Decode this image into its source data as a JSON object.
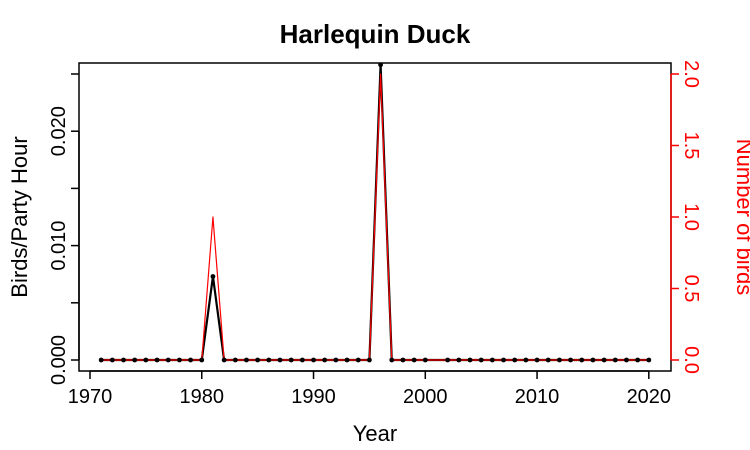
{
  "chart_data": {
    "type": "line",
    "title": "Harlequin Duck",
    "xlabel": "Year",
    "ylabel": "Birds/Party Hour",
    "ylabel_right": "Number of birds",
    "xlim": [
      1970,
      2021
    ],
    "ylim": [
      0,
      0.025
    ],
    "ylim_right": [
      0,
      2.0
    ],
    "x_ticks": [
      "1970",
      "1980",
      "1990",
      "2000",
      "2010",
      "2020"
    ],
    "y_ticks": [
      "0.000",
      "0.010",
      "0.020"
    ],
    "y_ticks_right": [
      "0.0",
      "0.5",
      "1.0",
      "1.5",
      "2.0"
    ],
    "grid": false,
    "colors": {
      "birds_per_party_hour": "#000000",
      "number_of_birds": "#ff0000"
    },
    "x": [
      1971,
      1972,
      1973,
      1974,
      1975,
      1976,
      1977,
      1978,
      1979,
      1980,
      1981,
      1982,
      1983,
      1984,
      1985,
      1986,
      1987,
      1988,
      1989,
      1990,
      1991,
      1992,
      1993,
      1994,
      1995,
      1996,
      1997,
      1998,
      1999,
      2000,
      2002,
      2003,
      2004,
      2005,
      2006,
      2007,
      2008,
      2009,
      2010,
      2011,
      2012,
      2013,
      2014,
      2015,
      2016,
      2017,
      2018,
      2019,
      2020
    ],
    "series": [
      {
        "axis": "left",
        "values": [
          0,
          0,
          0,
          0,
          0,
          0,
          0,
          0,
          0,
          0,
          0.0073,
          0,
          0,
          0,
          0,
          0,
          0,
          0,
          0,
          0,
          0,
          0,
          0,
          0,
          0,
          0.0258,
          0,
          0,
          0,
          0,
          0,
          0,
          0,
          0,
          0,
          0,
          0,
          0,
          0,
          0,
          0,
          0,
          0,
          0,
          0,
          0,
          0,
          0,
          0
        ]
      },
      {
        "axis": "right",
        "values": [
          0,
          0,
          0,
          0,
          0,
          0,
          0,
          0,
          0,
          0,
          1,
          0,
          0,
          0,
          0,
          0,
          0,
          0,
          0,
          0,
          0,
          0,
          0,
          0,
          0,
          2,
          0,
          0,
          0,
          0,
          0,
          0,
          0,
          0,
          0,
          0,
          0,
          0,
          0,
          0,
          0,
          0,
          0,
          0,
          0,
          0,
          0,
          0,
          0
        ]
      }
    ]
  }
}
